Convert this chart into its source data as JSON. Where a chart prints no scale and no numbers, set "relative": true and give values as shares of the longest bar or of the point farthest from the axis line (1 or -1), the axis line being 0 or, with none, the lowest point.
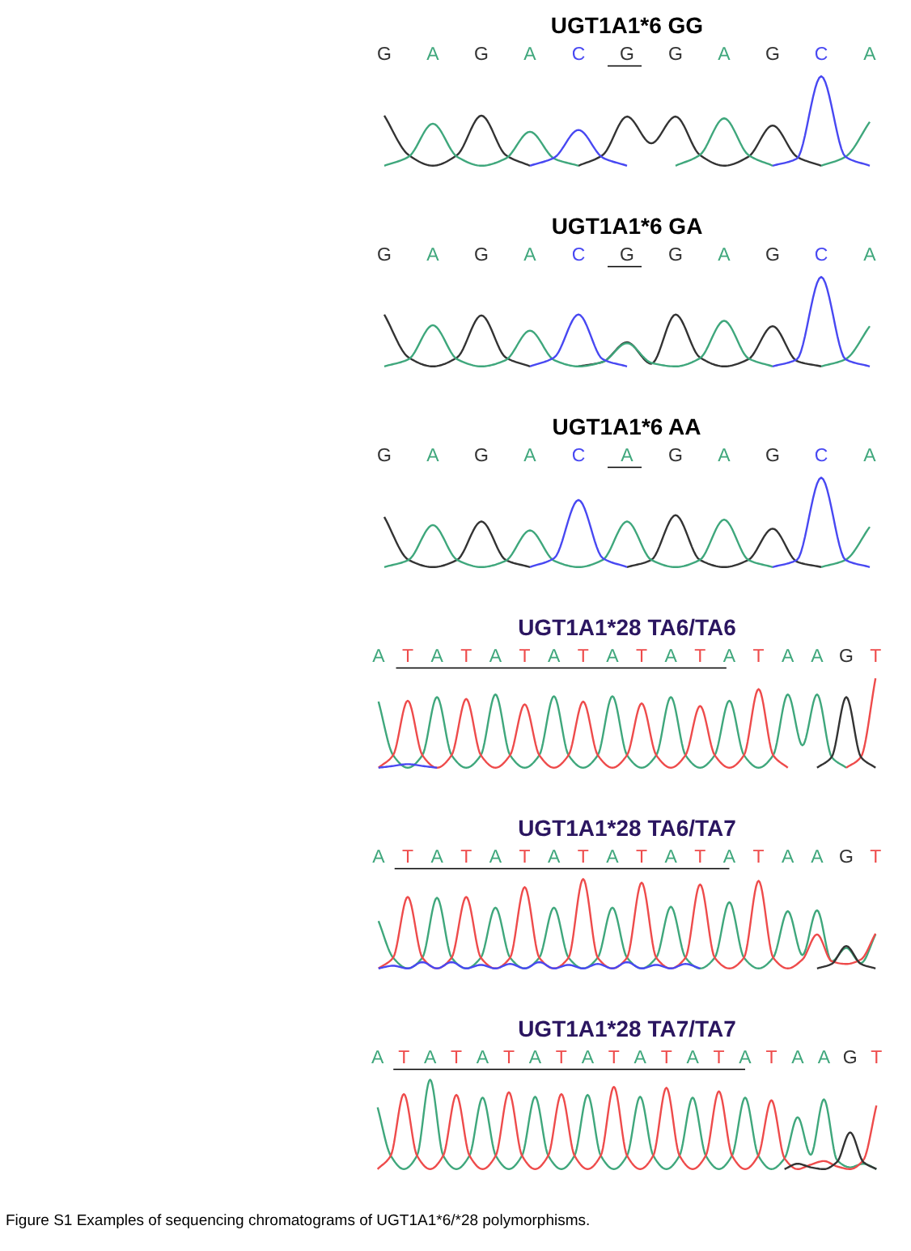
{
  "chart_data": [
    {
      "type": "line",
      "title": "UGT1A1*6 GG",
      "relative": true,
      "tick_labels": "x",
      "categories": [
        "G",
        null,
        "A",
        null,
        "G",
        null,
        "A",
        null,
        "C",
        null,
        "G",
        null,
        "G",
        null,
        "A",
        null,
        "G",
        null,
        "C",
        null,
        "A"
      ],
      "series": [
        {
          "color": "#333333",
          "values": [
            0.56,
            0.12,
            0,
            0.12,
            0.56,
            0.12,
            0,
            null,
            0,
            0.12,
            0.55,
            0.25,
            0.55,
            0.12,
            0,
            0.1,
            0.45,
            0.1,
            0,
            null,
            null
          ]
        },
        {
          "color": "#3fa77c",
          "values": [
            0,
            0.1,
            0.47,
            0.1,
            0,
            0.08,
            0.38,
            0.08,
            0,
            null,
            null,
            null,
            0,
            0.12,
            0.53,
            0.12,
            0,
            null,
            0,
            0.1,
            0.49
          ]
        },
        {
          "color": "#4848f2",
          "values": [
            null,
            null,
            null,
            null,
            null,
            null,
            0,
            0.09,
            0.4,
            0.09,
            0,
            null,
            null,
            null,
            null,
            null,
            0,
            0.08,
            1,
            0.1,
            0
          ]
        }
      ],
      "annotations": [
        "Figure S1 Examples of sequencing chromatograms of UGT1A1*6/*28 polymorphisms."
      ]
    },
    {
      "type": "line",
      "title": "UGT1A1*6 GA",
      "relative": true,
      "tick_labels": "x",
      "categories": [
        "G",
        null,
        "A",
        null,
        "G",
        null,
        "A",
        null,
        "C",
        null,
        "G",
        null,
        "G",
        null,
        "A",
        null,
        "G",
        null,
        "C",
        null,
        "A"
      ],
      "series": [
        {
          "color": "#333333",
          "values": [
            0.58,
            0.1,
            0,
            0.1,
            0.57,
            0.1,
            0,
            null,
            0,
            0.05,
            0.27,
            0.03,
            0.58,
            0.1,
            0,
            0.08,
            0.45,
            0.06,
            0,
            null,
            null
          ]
        },
        {
          "color": "#3fa77c",
          "values": [
            0,
            0.08,
            0.46,
            0.08,
            0,
            0.07,
            0.4,
            0.07,
            0,
            0.05,
            0.26,
            0.04,
            0,
            0.09,
            0.51,
            0.09,
            0,
            null,
            0,
            0.08,
            0.45
          ]
        },
        {
          "color": "#4848f2",
          "values": [
            null,
            null,
            null,
            null,
            null,
            null,
            0,
            0.1,
            0.58,
            0.08,
            0,
            null,
            null,
            null,
            null,
            null,
            0,
            0.08,
            1,
            0.08,
            0
          ]
        }
      ]
    },
    {
      "type": "line",
      "title": "UGT1A1*6 AA",
      "relative": true,
      "tick_labels": "x",
      "categories": [
        "G",
        null,
        "A",
        null,
        "G",
        null,
        "A",
        null,
        "C",
        null,
        "A",
        null,
        "G",
        null,
        "A",
        null,
        "G",
        null,
        "C",
        null,
        "A"
      ],
      "series": [
        {
          "color": "#333333",
          "values": [
            0.56,
            0.08,
            0,
            0.08,
            0.51,
            0.08,
            0,
            null,
            null,
            null,
            0,
            0.08,
            0.58,
            0.08,
            0,
            0.08,
            0.43,
            0.06,
            0,
            null,
            null
          ]
        },
        {
          "color": "#3fa77c",
          "values": [
            0,
            0.08,
            0.47,
            0.08,
            0,
            0.07,
            0.41,
            0.07,
            0,
            0.08,
            0.51,
            0.08,
            0,
            0.08,
            0.53,
            0.08,
            0,
            null,
            0,
            0.08,
            0.45
          ]
        },
        {
          "color": "#4848f2",
          "values": [
            null,
            null,
            null,
            null,
            null,
            null,
            0,
            0.1,
            0.75,
            0.1,
            0,
            null,
            null,
            null,
            null,
            null,
            0,
            0.08,
            1,
            0.08,
            0
          ]
        }
      ]
    },
    {
      "type": "line",
      "title": "UGT1A1*28 TA6/TA6",
      "relative": true,
      "tick_labels": "x",
      "categories": [
        "A",
        null,
        "T",
        null,
        "A",
        null,
        "T",
        null,
        "A",
        null,
        "T",
        null,
        "A",
        null,
        "T",
        null,
        "A",
        null,
        "T",
        null,
        "A",
        null,
        "T",
        null,
        "A",
        null,
        "T",
        null,
        "A",
        null,
        "A",
        null,
        "G",
        null,
        "T"
      ],
      "series": [
        {
          "color": "#3fa77c",
          "values": [
            0.74,
            0.14,
            0,
            0.14,
            0.79,
            0.14,
            0,
            0.14,
            0.82,
            0.14,
            0,
            0.14,
            0.8,
            0.14,
            0,
            0.14,
            0.8,
            0.14,
            0,
            0.14,
            0.79,
            0.14,
            0,
            0.14,
            0.75,
            0.14,
            0,
            0.14,
            0.82,
            0.25,
            0.82,
            0.12,
            0,
            null,
            null
          ]
        },
        {
          "color": "#ee4b4b",
          "values": [
            0,
            0.14,
            0.75,
            0.14,
            0,
            0.14,
            0.77,
            0.14,
            0,
            0.14,
            0.71,
            0.14,
            0,
            0.14,
            0.74,
            0.14,
            0,
            0.14,
            0.72,
            0.14,
            0,
            0.14,
            0.69,
            0.14,
            0,
            0.14,
            0.88,
            0.14,
            0,
            null,
            null,
            null,
            0,
            0.12,
            1
          ]
        },
        {
          "color": "#333333",
          "values": [
            null,
            null,
            null,
            null,
            null,
            null,
            null,
            null,
            null,
            null,
            null,
            null,
            null,
            null,
            null,
            null,
            null,
            null,
            null,
            null,
            null,
            null,
            null,
            null,
            null,
            null,
            null,
            null,
            null,
            null,
            0,
            0.12,
            0.79,
            0.12,
            0
          ]
        },
        {
          "color": "#4848f2",
          "values": [
            0,
            0.02,
            0.04,
            0.02,
            0,
            null,
            null,
            null,
            null,
            null,
            null,
            null,
            null,
            null,
            null,
            null,
            null,
            null,
            null,
            null,
            null,
            null,
            null,
            null,
            null,
            null,
            null,
            null,
            null,
            null,
            null,
            null,
            null,
            null,
            null
          ]
        }
      ]
    },
    {
      "type": "line",
      "title": "UGT1A1*28 TA6/TA7",
      "relative": true,
      "tick_labels": "x",
      "categories": [
        "A",
        null,
        "T",
        null,
        "A",
        null,
        "T",
        null,
        "A",
        null,
        "T",
        null,
        "A",
        null,
        "T",
        null,
        "A",
        null,
        "T",
        null,
        "A",
        null,
        "T",
        null,
        "A",
        null,
        "T",
        null,
        "A",
        null,
        "A",
        null,
        "G",
        null,
        "T"
      ],
      "series": [
        {
          "color": "#3fa77c",
          "values": [
            0.53,
            0.12,
            0,
            0.12,
            0.79,
            0.12,
            0,
            0.12,
            0.68,
            0.12,
            0,
            0.12,
            0.68,
            0.12,
            0,
            0.12,
            0.68,
            0.12,
            0,
            0.12,
            0.69,
            0.12,
            0,
            0.12,
            0.74,
            0.12,
            0,
            0.12,
            0.64,
            0.15,
            0.65,
            0.08,
            0.23,
            0.06,
            0.38
          ]
        },
        {
          "color": "#ee4b4b",
          "values": [
            0,
            0.12,
            0.8,
            0.12,
            0,
            0.12,
            0.8,
            0.12,
            0,
            0.12,
            0.91,
            0.12,
            0,
            0.12,
            1,
            0.12,
            0,
            0.12,
            0.96,
            0.12,
            0,
            0.12,
            0.94,
            0.12,
            0,
            0.12,
            0.98,
            0.12,
            0,
            0.1,
            0.38,
            0.08,
            0.05,
            0.1,
            0.39
          ]
        },
        {
          "color": "#333333",
          "values": [
            null,
            null,
            null,
            null,
            null,
            null,
            null,
            null,
            null,
            null,
            null,
            null,
            null,
            null,
            null,
            null,
            null,
            null,
            null,
            null,
            null,
            null,
            null,
            null,
            null,
            null,
            null,
            null,
            null,
            null,
            0,
            0.05,
            0.25,
            0.05,
            0
          ]
        },
        {
          "color": "#4848f2",
          "values": [
            0,
            0.03,
            0,
            0.07,
            0,
            0.07,
            0,
            0.04,
            0,
            0.05,
            0,
            0.07,
            0,
            0.04,
            0,
            0.05,
            0,
            0.07,
            0,
            0.04,
            0,
            0.05,
            0,
            null,
            null,
            null,
            null,
            null,
            null,
            null,
            null,
            null,
            null,
            null,
            null
          ]
        }
      ]
    },
    {
      "type": "line",
      "title": "UGT1A1*28 TA7/TA7",
      "relative": true,
      "tick_labels": "x",
      "categories": [
        "A",
        null,
        "T",
        null,
        "A",
        null,
        "T",
        null,
        "A",
        null,
        "T",
        null,
        "A",
        null,
        "T",
        null,
        "A",
        null,
        "T",
        null,
        "A",
        null,
        "T",
        null,
        "A",
        null,
        "T",
        null,
        "A",
        null,
        "T",
        null,
        "A",
        null,
        "A",
        null,
        "G",
        null,
        "T"
      ],
      "series": [
        {
          "color": "#3fa77c",
          "values": [
            0.69,
            0.15,
            0,
            0.15,
            1,
            0.15,
            0,
            0.15,
            0.8,
            0.15,
            0,
            0.15,
            0.81,
            0.15,
            0,
            0.15,
            0.83,
            0.15,
            0,
            0.15,
            0.81,
            0.15,
            0,
            0.15,
            0.8,
            0.15,
            0,
            0.15,
            0.8,
            0.15,
            0,
            0.12,
            0.58,
            0.16,
            0.78,
            0.1,
            0.02,
            0.06,
            0
          ]
        },
        {
          "color": "#ee4b4b",
          "values": [
            0,
            0.15,
            0.84,
            0.15,
            0,
            0.15,
            0.83,
            0.15,
            0,
            0.15,
            0.86,
            0.15,
            0,
            0.15,
            0.84,
            0.15,
            0,
            0.15,
            0.92,
            0.15,
            0,
            0.15,
            0.91,
            0.15,
            0,
            0.15,
            0.87,
            0.15,
            0,
            0.15,
            0.77,
            0.12,
            0,
            0.05,
            0.09,
            0.03,
            0,
            0.1,
            0.71
          ]
        },
        {
          "color": "#333333",
          "values": [
            null,
            null,
            null,
            null,
            null,
            null,
            null,
            null,
            null,
            null,
            null,
            null,
            null,
            null,
            null,
            null,
            null,
            null,
            null,
            null,
            null,
            null,
            null,
            null,
            null,
            null,
            null,
            null,
            null,
            null,
            null,
            0,
            0.06,
            0.02,
            0,
            0.08,
            0.41,
            0.08,
            0
          ]
        }
      ]
    }
  ]
}
